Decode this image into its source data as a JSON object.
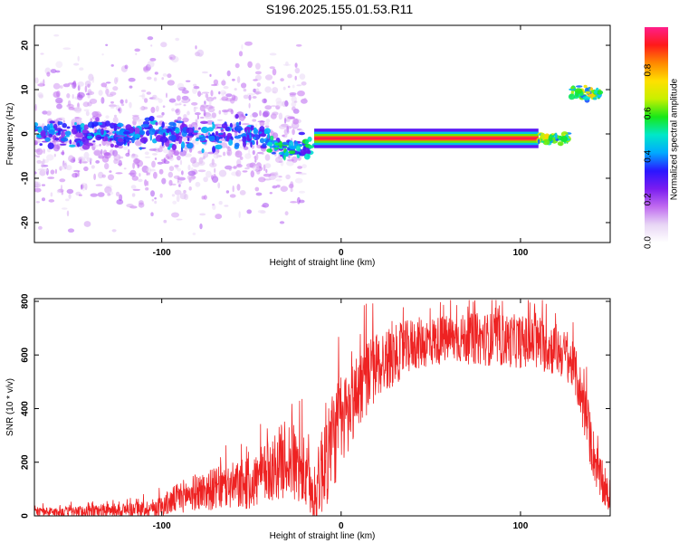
{
  "title": "S196.2025.155.01.53.R11",
  "colors": {
    "snr_line": "#ee2222",
    "colormap": [
      "#ffffff",
      "#e8d6f5",
      "#c06af0",
      "#7a1cf0",
      "#2a16ff",
      "#00aaff",
      "#00e8c8",
      "#18e818",
      "#c8f000",
      "#ffe000",
      "#ff8800",
      "#ff1a1a",
      "#ff1e8a"
    ]
  },
  "chart_data": [
    {
      "type": "heatmap",
      "xlabel": "Height of straight line (km)",
      "ylabel": "Frequency (Hz)",
      "xlim": [
        -171,
        150
      ],
      "ylim": [
        -24.5,
        24.5
      ],
      "xticks": [
        -100,
        0,
        100
      ],
      "yticks": [
        -20,
        -10,
        0,
        10,
        20
      ],
      "colorbar": {
        "label": "Normalized spectral amplitude",
        "ticks": [
          0.0,
          0.2,
          0.4,
          0.6,
          0.8
        ],
        "range": [
          0,
          1
        ]
      },
      "features": [
        {
          "x_range": [
            -171,
            -20
          ],
          "freq_center": 0,
          "freq_spread": 24,
          "amplitude": 0.15,
          "description": "scattered noise"
        },
        {
          "x_range": [
            -171,
            -40
          ],
          "freq_center": 0,
          "freq_spread": 4,
          "amplitude": 0.35
        },
        {
          "x_range": [
            -40,
            -15
          ],
          "freq_center": -3,
          "freq_spread": 3,
          "amplitude": 0.45
        },
        {
          "x_range": [
            -15,
            110
          ],
          "freq_center": -1,
          "freq_spread": 1,
          "amplitude": 1.0
        },
        {
          "x_range": [
            110,
            127
          ],
          "freq_center": -1,
          "freq_spread": 2,
          "amplitude": 0.6
        },
        {
          "x_range": [
            128,
            146
          ],
          "freq_center": 9,
          "freq_spread": 2,
          "amplitude": 0.6
        }
      ]
    },
    {
      "type": "line",
      "xlabel": "Height of straight line (km)",
      "ylabel": "SNR (10 * v/v)",
      "xlim": [
        -171,
        150
      ],
      "ylim": [
        0,
        810
      ],
      "xticks": [
        -100,
        0,
        100
      ],
      "yticks": [
        0,
        200,
        400,
        600,
        800
      ],
      "series": [
        {
          "envelope_x": [
            -171,
            -150,
            -130,
            -110,
            -100,
            -90,
            -80,
            -70,
            -60,
            -50,
            -40,
            -30,
            -20,
            -15,
            -10,
            -5,
            0,
            5,
            10,
            20,
            30,
            40,
            60,
            80,
            100,
            110,
            115,
            120,
            125,
            130,
            135,
            140,
            145,
            150
          ],
          "envelope_mean": [
            15,
            15,
            20,
            25,
            35,
            70,
            90,
            100,
            110,
            120,
            170,
            220,
            150,
            60,
            200,
            280,
            350,
            400,
            480,
            560,
            600,
            640,
            660,
            660,
            650,
            640,
            630,
            620,
            600,
            550,
            420,
            250,
            120,
            50
          ],
          "envelope_spread": [
            15,
            20,
            25,
            30,
            40,
            60,
            70,
            80,
            90,
            100,
            120,
            150,
            140,
            80,
            200,
            200,
            180,
            160,
            150,
            130,
            110,
            100,
            90,
            100,
            100,
            100,
            100,
            100,
            90,
            90,
            110,
            100,
            80,
            40
          ]
        }
      ]
    }
  ]
}
